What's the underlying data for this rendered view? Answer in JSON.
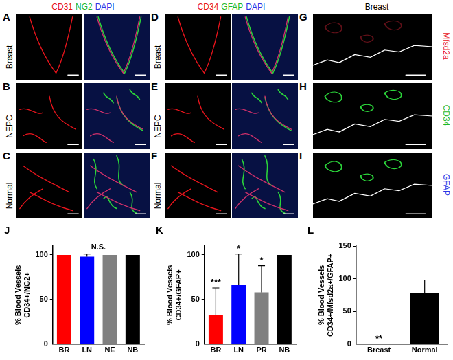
{
  "image_groups": [
    {
      "header": [
        {
          "text": "CD31",
          "color": "#e8141c"
        },
        {
          "text": "NG2",
          "color": "#1fb82a"
        },
        {
          "text": "DAPI",
          "color": "#2a36e6"
        }
      ],
      "columns": 2,
      "rows": [
        {
          "letter": "A",
          "label": "Breast"
        },
        {
          "letter": "B",
          "label": "NEPC"
        },
        {
          "letter": "C",
          "label": "Normal"
        }
      ]
    },
    {
      "header": [
        {
          "text": "CD34",
          "color": "#e8141c"
        },
        {
          "text": "GFAP",
          "color": "#1fb82a"
        },
        {
          "text": "DAPI",
          "color": "#2a36e6"
        }
      ],
      "columns": 2,
      "rows": [
        {
          "letter": "D",
          "label": "Breast"
        },
        {
          "letter": "E",
          "label": "NEPC"
        },
        {
          "letter": "F",
          "label": "Normal"
        }
      ]
    },
    {
      "header": [
        {
          "text": "Breast",
          "color": "#000000"
        }
      ],
      "columns": 1,
      "rows": [
        {
          "letter": "G",
          "side_label": "Mfsd2a",
          "side_color": "#e8141c"
        },
        {
          "letter": "H",
          "side_label": "CD34",
          "side_color": "#1fb82a"
        },
        {
          "letter": "I",
          "side_label": "GFAP",
          "side_color": "#2a36e6"
        }
      ]
    }
  ],
  "chart_data": [
    {
      "panel_label": "J",
      "type": "bar",
      "y_label": [
        "% Blood Vessels",
        "CD34+/NG2+"
      ],
      "categories": [
        "BR",
        "LN",
        "NE",
        "NB"
      ],
      "values": [
        100,
        98,
        100,
        100
      ],
      "errors": [
        0,
        3,
        0,
        0
      ],
      "colors": [
        "#ff0000",
        "#0000ff",
        "#808080",
        "#000000"
      ],
      "ylim": [
        0,
        110
      ],
      "yticks": [
        0,
        50,
        100
      ],
      "annotation": "N.S.",
      "grid": false
    },
    {
      "panel_label": "K",
      "type": "bar",
      "y_label": [
        "% Blood Vessels",
        "CD34+/GFAP+"
      ],
      "categories": [
        "BR",
        "LN",
        "PR",
        "NB"
      ],
      "values": [
        33,
        66,
        58,
        100
      ],
      "errors": [
        30,
        35,
        30,
        0
      ],
      "significance": [
        "***",
        "*",
        "*",
        null
      ],
      "colors": [
        "#ff0000",
        "#0000ff",
        "#808080",
        "#000000"
      ],
      "ylim": [
        0,
        110
      ],
      "yticks": [
        0,
        50,
        100
      ],
      "grid": false
    },
    {
      "panel_label": "L",
      "type": "bar",
      "y_label": [
        "% Blood Vessels",
        "CD34+/Mfsd2a+/GFAP+"
      ],
      "categories": [
        "Breast",
        "Normal"
      ],
      "values": [
        0,
        78
      ],
      "errors": [
        0,
        20
      ],
      "significance": [
        "**",
        null
      ],
      "colors": [
        "#000000",
        "#000000"
      ],
      "ylim": [
        0,
        150
      ],
      "yticks": [
        0,
        50,
        100,
        150
      ],
      "grid": false
    }
  ]
}
